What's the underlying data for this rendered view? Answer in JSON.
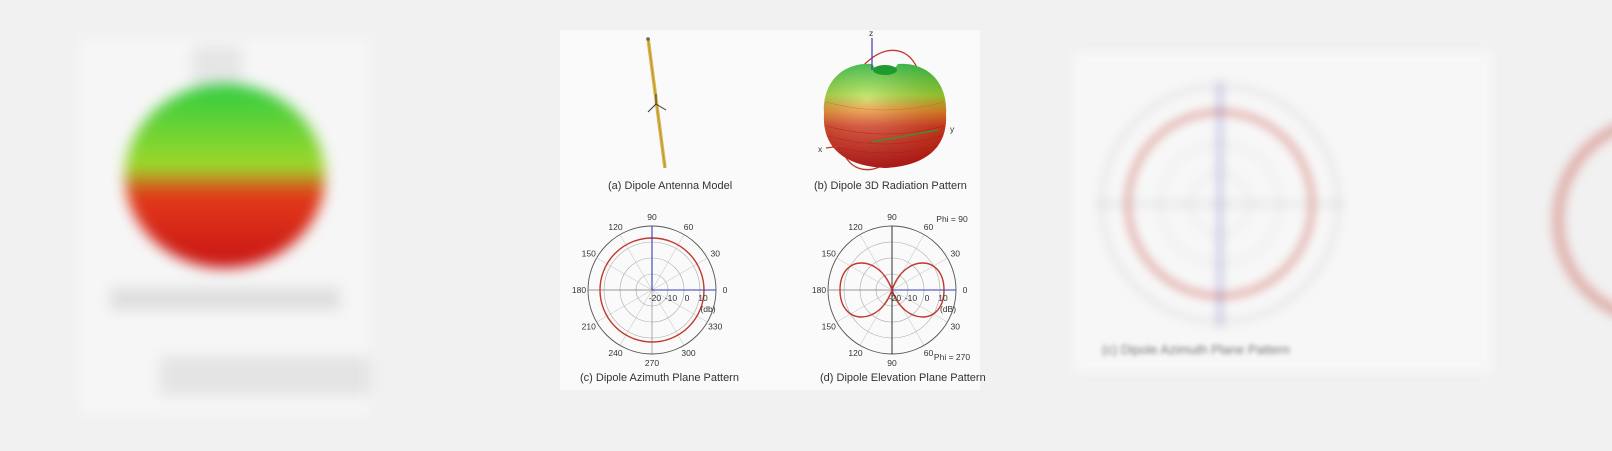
{
  "figure": {
    "captions": {
      "a": "(a) Dipole Antenna Model",
      "b": "(b) Dipole 3D Radiation Pattern",
      "c": "(c) Dipole Azimuth Plane Pattern",
      "d": "(d) Dipole Elevation Plane Pattern"
    },
    "model_3d": {
      "axis_x": "x",
      "axis_y": "y",
      "axis_z": "z"
    },
    "azimuth_plot": {
      "angle_labels": [
        "90",
        "60",
        "30",
        "0",
        "330",
        "300",
        "270",
        "240",
        "210",
        "180",
        "150",
        "120"
      ],
      "radial_labels": [
        "-20",
        "-10",
        "0",
        "10"
      ],
      "unit": "(db)",
      "pattern_color": "#c0392b",
      "axis_color": "#3b3bb3"
    },
    "elevation_plot": {
      "angle_labels_top": [
        "90",
        "60",
        "30",
        "0",
        "180",
        "150",
        "120"
      ],
      "angle_labels_bottom": [
        "30",
        "60",
        "90",
        "120",
        "150"
      ],
      "radial_labels": [
        "-20",
        "-10",
        "0",
        "10"
      ],
      "unit": "(dB)",
      "phi_top": "Phi = 90",
      "phi_bottom": "Phi = 270",
      "pattern_color": "#c0392b"
    },
    "blurred_caption_right": "(c) Dipole Azimuth Plane Pattern",
    "colors": {
      "lobe_green": "#2ecc40",
      "lobe_red": "#d81e1e",
      "dipole": "#d9b64a"
    }
  }
}
